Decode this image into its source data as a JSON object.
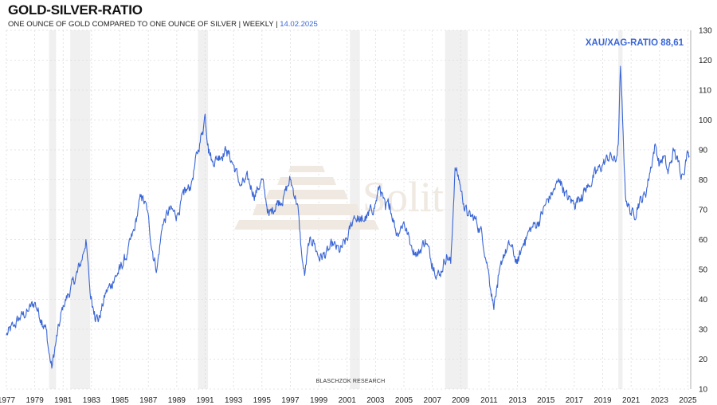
{
  "header": {
    "title": "GOLD-SILVER-RATIO",
    "subtitle": "ONE OUNCE OF GOLD COMPARED TO ONE OUNCE OF SILVER | WEEKLY |",
    "date": "14.02.2025"
  },
  "watermark": {
    "text": "Solit"
  },
  "credit": "BLASCHZOK    RESEARCH",
  "colors": {
    "line": "#3a66d6",
    "recession": "#f0f0f0",
    "grid": "#dddddd"
  },
  "chart_data": {
    "type": "line",
    "title": "GOLD-SILVER-RATIO",
    "xlabel": "",
    "ylabel": "",
    "xlim": [
      1977.0,
      2025.2
    ],
    "ylim": [
      10,
      130
    ],
    "y_ticks": [
      10,
      20,
      30,
      40,
      50,
      60,
      70,
      80,
      90,
      100,
      110,
      120,
      130
    ],
    "x_ticks": [
      1977,
      1979,
      1981,
      1983,
      1985,
      1987,
      1989,
      1991,
      1993,
      1995,
      1997,
      1999,
      2001,
      2003,
      2005,
      2007,
      2009,
      2011,
      2013,
      2015,
      2017,
      2019,
      2021,
      2023,
      2025
    ],
    "grid": true,
    "legend": {
      "label": "XAU/XAG-RATIO",
      "value": "88,61",
      "position": "top-right"
    },
    "recession_bands": [
      [
        1980.0,
        1980.5
      ],
      [
        1981.5,
        1982.9
      ],
      [
        1990.5,
        1991.2
      ],
      [
        2001.2,
        2001.9
      ],
      [
        2007.9,
        2009.5
      ],
      [
        2020.1,
        2020.4
      ]
    ],
    "series": [
      {
        "name": "XAU/XAG-RATIO",
        "x": [
          1977.0,
          1977.5,
          1978.0,
          1978.5,
          1979.0,
          1979.5,
          1979.8,
          1980.0,
          1980.2,
          1980.5,
          1980.8,
          1981.0,
          1981.5,
          1982.0,
          1982.3,
          1982.6,
          1982.9,
          1983.2,
          1983.5,
          1984.0,
          1984.5,
          1985.0,
          1985.5,
          1986.0,
          1986.5,
          1986.9,
          1987.3,
          1987.6,
          1988.0,
          1988.5,
          1989.0,
          1989.5,
          1990.0,
          1990.5,
          1990.8,
          1991.0,
          1991.2,
          1991.5,
          1992.0,
          1992.5,
          1993.0,
          1993.5,
          1994.0,
          1994.5,
          1995.0,
          1995.5,
          1996.0,
          1996.5,
          1997.0,
          1997.5,
          1997.8,
          1998.0,
          1998.3,
          1998.6,
          1999.0,
          1999.5,
          2000.0,
          2000.5,
          2001.0,
          2001.5,
          2002.0,
          2002.5,
          2003.0,
          2003.3,
          2003.7,
          2004.0,
          2004.5,
          2005.0,
          2005.5,
          2006.0,
          2006.5,
          2007.0,
          2007.5,
          2008.0,
          2008.3,
          2008.6,
          2008.9,
          2009.2,
          2009.5,
          2010.0,
          2010.5,
          2011.0,
          2011.3,
          2011.6,
          2012.0,
          2012.5,
          2013.0,
          2013.5,
          2014.0,
          2014.5,
          2015.0,
          2015.5,
          2016.0,
          2016.5,
          2017.0,
          2017.5,
          2018.0,
          2018.5,
          2019.0,
          2019.5,
          2019.9,
          2020.1,
          2020.25,
          2020.4,
          2020.6,
          2020.9,
          2021.2,
          2021.5,
          2022.0,
          2022.3,
          2022.7,
          2023.0,
          2023.3,
          2023.6,
          2024.0,
          2024.3,
          2024.6,
          2025.0,
          2025.1
        ],
        "values": [
          28,
          31,
          34,
          36,
          39,
          33,
          30,
          22,
          17,
          26,
          33,
          38,
          43,
          49,
          53,
          60,
          42,
          36,
          33,
          42,
          46,
          50,
          55,
          63,
          75,
          70,
          56,
          50,
          65,
          70,
          68,
          75,
          78,
          90,
          96,
          102,
          92,
          86,
          88,
          90,
          85,
          78,
          80,
          75,
          80,
          68,
          72,
          74,
          80,
          72,
          55,
          48,
          58,
          60,
          54,
          55,
          58,
          56,
          60,
          68,
          66,
          68,
          72,
          78,
          70,
          72,
          62,
          66,
          58,
          55,
          60,
          52,
          48,
          55,
          52,
          84,
          80,
          72,
          68,
          67,
          62,
          48,
          38,
          44,
          55,
          58,
          52,
          60,
          64,
          66,
          72,
          76,
          80,
          74,
          72,
          75,
          78,
          82,
          85,
          88,
          86,
          92,
          118,
          100,
          75,
          70,
          68,
          72,
          75,
          82,
          92,
          85,
          88,
          82,
          90,
          86,
          82,
          89,
          88
        ]
      }
    ]
  }
}
